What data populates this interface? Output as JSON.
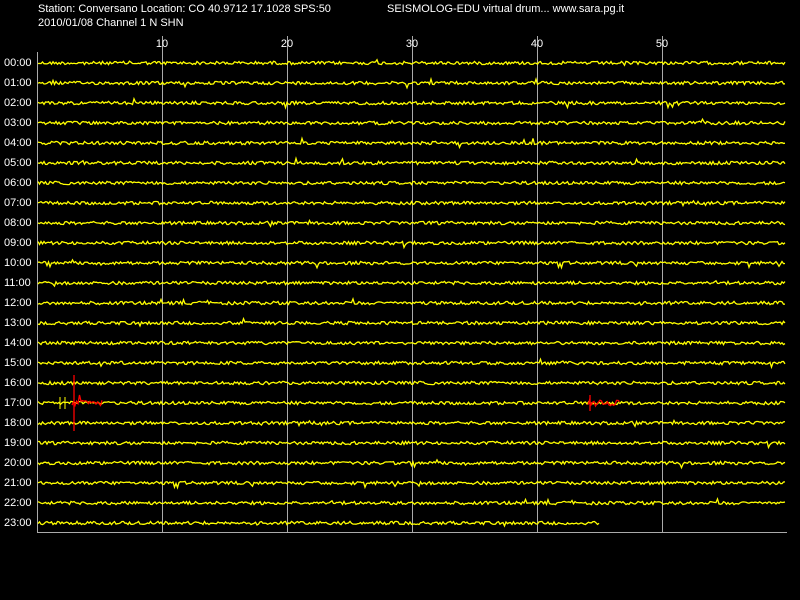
{
  "header": {
    "station_line": "Station: Conversano Location: CO 40.9712 17.1028 SPS:50",
    "title": "SEISMOLOG-EDU virtual drum... www.sara.pg.it",
    "date_line": "2010/01/08  Channel 1 N SHN"
  },
  "x_axis": {
    "ticks": [
      10,
      20,
      30,
      40,
      50
    ]
  },
  "rows": [
    "00:00",
    "01:00",
    "02:00",
    "03:00",
    "04:00",
    "05:00",
    "06:00",
    "07:00",
    "08:00",
    "09:00",
    "10:00",
    "11:00",
    "12:00",
    "13:00",
    "14:00",
    "15:00",
    "16:00",
    "17:00",
    "18:00",
    "19:00",
    "20:00",
    "21:00",
    "22:00",
    "23:00"
  ]
}
